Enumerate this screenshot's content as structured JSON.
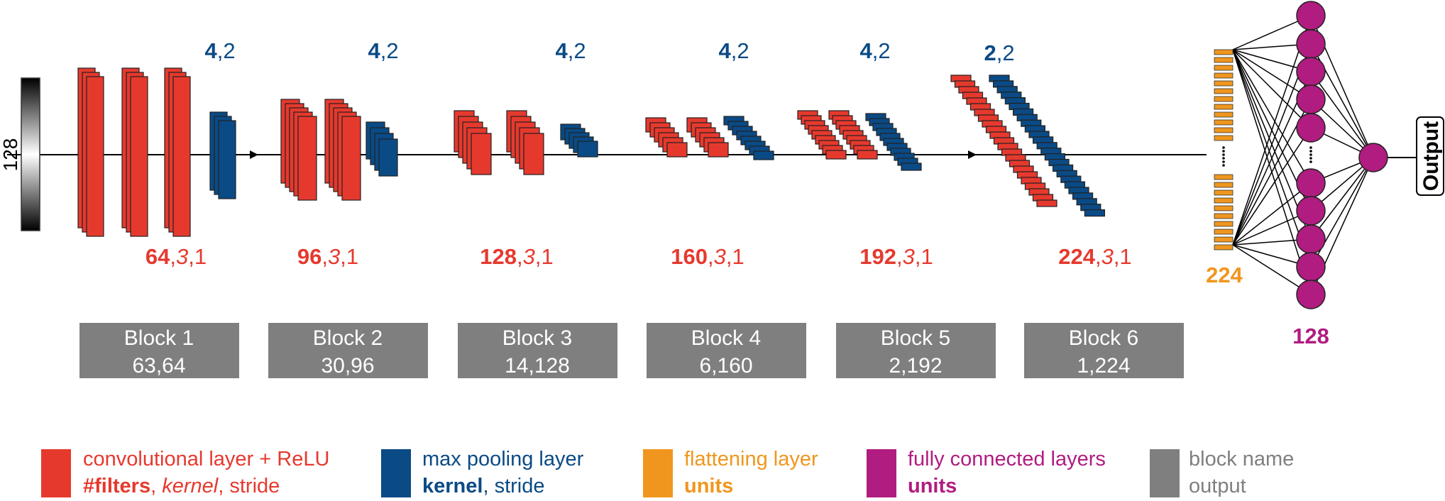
{
  "input": {
    "label": "128"
  },
  "blocks": [
    {
      "name": "Block 1",
      "output": "63,64",
      "conv": {
        "filters": "64",
        "kernel": "3",
        "stride": "1"
      },
      "pool": {
        "kernel": "4",
        "stride": "2"
      }
    },
    {
      "name": "Block 2",
      "output": "30,96",
      "conv": {
        "filters": "96",
        "kernel": "3",
        "stride": "1"
      },
      "pool": {
        "kernel": "4",
        "stride": "2"
      }
    },
    {
      "name": "Block 3",
      "output": "14,128",
      "conv": {
        "filters": "128",
        "kernel": "3",
        "stride": "1"
      },
      "pool": {
        "kernel": "4",
        "stride": "2"
      }
    },
    {
      "name": "Block 4",
      "output": "6,160",
      "conv": {
        "filters": "160",
        "kernel": "3",
        "stride": "1"
      },
      "pool": {
        "kernel": "4",
        "stride": "2"
      }
    },
    {
      "name": "Block 5",
      "output": "2,192",
      "conv": {
        "filters": "192",
        "kernel": "3",
        "stride": "1"
      },
      "pool": {
        "kernel": "4",
        "stride": "2"
      }
    },
    {
      "name": "Block 6",
      "output": "1,224",
      "conv": {
        "filters": "224",
        "kernel": "3",
        "stride": "1"
      },
      "pool": {
        "kernel": "2",
        "stride": "2"
      }
    }
  ],
  "flatten": {
    "units": "224"
  },
  "dense": {
    "units": "128"
  },
  "output": {
    "label": "Output"
  },
  "legend": {
    "conv": {
      "title": "convolutional layer + ReLU",
      "filters": "#filters",
      "sep1": ", ",
      "kernel": "kernel",
      "sep2": ", ",
      "stride": "stride"
    },
    "pool": {
      "title": "max pooling layer",
      "kernel": "kernel",
      "sep": ", ",
      "stride": "stride"
    },
    "flat": {
      "title": "flattening layer",
      "units": "units"
    },
    "fc": {
      "title": "fully connected layers",
      "units": "units"
    },
    "block": {
      "title": "block name",
      "output": "output"
    }
  },
  "colors": {
    "conv": "#e6392e",
    "pool": "#0a4a85",
    "flatten": "#f0961e",
    "dense": "#b01c80",
    "block": "#7f7f7f"
  }
}
